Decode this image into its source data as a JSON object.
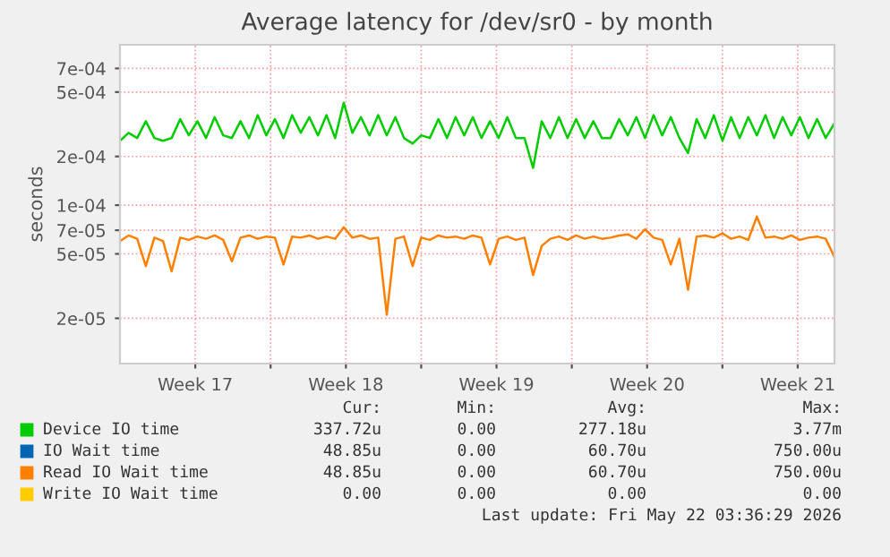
{
  "chart_data": {
    "type": "line",
    "title": "Average latency for /dev/sr0 - by month",
    "ylabel": "seconds",
    "log": true,
    "grid": true,
    "legend": "bottom",
    "marker": "none",
    "line_style": "solid",
    "xlim": [
      "2026-04-20T00:00",
      "2026-05-23T05:00"
    ],
    "xticks": [
      {
        "value": "2026-04-23T12:00",
        "label": "Week 17"
      },
      {
        "value": "2026-04-27",
        "label": null
      },
      {
        "value": "2026-04-30T12:00",
        "label": "Week 18"
      },
      {
        "value": "2026-05-04",
        "label": null
      },
      {
        "value": "2026-05-07T12:00",
        "label": "Week 19"
      },
      {
        "value": "2026-05-11",
        "label": null
      },
      {
        "value": "2026-05-14T12:00",
        "label": "Week 20"
      },
      {
        "value": "2026-05-18",
        "label": null
      },
      {
        "value": "2026-05-21T12:00",
        "label": "Week 21"
      }
    ],
    "ylim": [
      1.05e-05,
      0.00098
    ],
    "yticks": [
      {
        "value": 2e-05,
        "label": "2e-05"
      },
      {
        "value": 5e-05,
        "label": "5e-05"
      },
      {
        "value": 7e-05,
        "label": "7e-05"
      },
      {
        "value": 0.0001,
        "label": "1e-04"
      },
      {
        "value": 0.0002,
        "label": "2e-04"
      },
      {
        "value": 0.0005,
        "label": "5e-04"
      },
      {
        "value": 0.0007,
        "label": "7e-04"
      }
    ],
    "x": [
      "2026-04-20T00:00",
      "2026-04-20T09:36",
      "2026-04-20T19:12",
      "2026-04-21T04:48",
      "2026-04-21T14:24",
      "2026-04-22T00:00",
      "2026-04-22T09:36",
      "2026-04-22T19:12",
      "2026-04-23T04:48",
      "2026-04-23T14:24",
      "2026-04-24T00:00",
      "2026-04-24T09:36",
      "2026-04-24T19:12",
      "2026-04-25T04:48",
      "2026-04-25T14:24",
      "2026-04-26T00:00",
      "2026-04-26T09:36",
      "2026-04-26T19:12",
      "2026-04-27T04:48",
      "2026-04-27T14:24",
      "2026-04-28T00:00",
      "2026-04-28T09:36",
      "2026-04-28T19:12",
      "2026-04-29T04:48",
      "2026-04-29T14:24",
      "2026-04-30T00:00",
      "2026-04-30T09:36",
      "2026-04-30T19:12",
      "2026-05-01T04:48",
      "2026-05-01T14:24",
      "2026-05-02T00:00",
      "2026-05-02T09:36",
      "2026-05-02T19:12",
      "2026-05-03T04:48",
      "2026-05-03T14:24",
      "2026-05-04T00:00",
      "2026-05-04T09:36",
      "2026-05-04T19:12",
      "2026-05-05T04:48",
      "2026-05-05T14:24",
      "2026-05-06T00:00",
      "2026-05-06T09:36",
      "2026-05-06T19:12",
      "2026-05-07T04:48",
      "2026-05-07T14:24",
      "2026-05-08T00:00",
      "2026-05-08T09:36",
      "2026-05-08T19:12",
      "2026-05-09T04:48",
      "2026-05-09T14:24",
      "2026-05-10T00:00",
      "2026-05-10T09:36",
      "2026-05-10T19:12",
      "2026-05-11T04:48",
      "2026-05-11T14:24",
      "2026-05-12T00:00",
      "2026-05-12T09:36",
      "2026-05-12T19:12",
      "2026-05-13T04:48",
      "2026-05-13T14:24",
      "2026-05-14T00:00",
      "2026-05-14T09:36",
      "2026-05-14T19:12",
      "2026-05-15T04:48",
      "2026-05-15T14:24",
      "2026-05-16T00:00",
      "2026-05-16T09:36",
      "2026-05-16T19:12",
      "2026-05-17T04:48",
      "2026-05-17T14:24",
      "2026-05-18T00:00",
      "2026-05-18T09:36",
      "2026-05-18T19:12",
      "2026-05-19T04:48",
      "2026-05-19T14:24",
      "2026-05-20T00:00",
      "2026-05-20T09:36",
      "2026-05-20T19:12",
      "2026-05-21T04:48",
      "2026-05-21T14:24",
      "2026-05-22T00:00",
      "2026-05-22T09:36",
      "2026-05-22T19:12",
      "2026-05-23T04:48"
    ],
    "series": [
      {
        "name": "Device IO time",
        "color": "#00cc00",
        "values": [
          0.00025,
          0.00028,
          0.00026,
          0.00033,
          0.00026,
          0.00025,
          0.00026,
          0.00034,
          0.00027,
          0.00033,
          0.00026,
          0.00035,
          0.00027,
          0.00026,
          0.00033,
          0.00026,
          0.00036,
          0.00027,
          0.00034,
          0.00026,
          0.00036,
          0.00028,
          0.00035,
          0.00027,
          0.00036,
          0.00026,
          0.00043,
          0.00028,
          0.00035,
          0.00027,
          0.00036,
          0.00027,
          0.00035,
          0.00026,
          0.00024,
          0.00027,
          0.00026,
          0.00034,
          0.00026,
          0.00035,
          0.00027,
          0.00035,
          0.00026,
          0.00033,
          0.00026,
          0.00035,
          0.00026,
          0.00026,
          0.00017,
          0.00033,
          0.00026,
          0.00035,
          0.00026,
          0.00034,
          0.00026,
          0.00033,
          0.00026,
          0.00026,
          0.00034,
          0.00027,
          0.00035,
          0.00026,
          0.00036,
          0.00027,
          0.00035,
          0.00026,
          0.00021,
          0.00034,
          0.00026,
          0.00036,
          0.00025,
          0.00035,
          0.00026,
          0.00035,
          0.00027,
          0.00036,
          0.00026,
          0.00035,
          0.00027,
          0.00035,
          0.00026,
          0.00034,
          0.00026,
          0.00032
        ]
      },
      {
        "name": "IO Wait time",
        "color": "#0066b3",
        "values": [
          null,
          null,
          null,
          null,
          null,
          null,
          null,
          null,
          null,
          null,
          null,
          null,
          null,
          null,
          null,
          null,
          null,
          null,
          null,
          null,
          null,
          null,
          null,
          null,
          null,
          null,
          null,
          null,
          null,
          null,
          null,
          null,
          null,
          null,
          null,
          null,
          null,
          null,
          null,
          null,
          null,
          null,
          null,
          null,
          null,
          null,
          null,
          null,
          null,
          null,
          null,
          null,
          null,
          null,
          null,
          null,
          null,
          null,
          null,
          null,
          null,
          null,
          null,
          null,
          null,
          null,
          null,
          null,
          null,
          null,
          null,
          null,
          null,
          null,
          null,
          null,
          null,
          null,
          null,
          null,
          null,
          null,
          null,
          null
        ]
      },
      {
        "name": "Read IO Wait time",
        "color": "#ff8000",
        "values": [
          6e-05,
          6.5e-05,
          6.2e-05,
          4.2e-05,
          6.3e-05,
          6e-05,
          3.9e-05,
          6.3e-05,
          6.1e-05,
          6.4e-05,
          6.2e-05,
          6.5e-05,
          6.1e-05,
          4.5e-05,
          6.3e-05,
          6.5e-05,
          6.2e-05,
          6.4e-05,
          6.3e-05,
          4.3e-05,
          6.4e-05,
          6.3e-05,
          6.5e-05,
          6.2e-05,
          6.4e-05,
          6.2e-05,
          7.3e-05,
          6.3e-05,
          6.5e-05,
          6.2e-05,
          6.3e-05,
          2.1e-05,
          6.2e-05,
          6.4e-05,
          4.2e-05,
          6.3e-05,
          6.1e-05,
          6.5e-05,
          6.3e-05,
          6.4e-05,
          6.2e-05,
          6.5e-05,
          6.3e-05,
          4.3e-05,
          6.2e-05,
          6.4e-05,
          6.1e-05,
          6.3e-05,
          3.7e-05,
          5.6e-05,
          6.2e-05,
          6.4e-05,
          6.1e-05,
          6.5e-05,
          6.2e-05,
          6.4e-05,
          6.2e-05,
          6.3e-05,
          6.5e-05,
          6.6e-05,
          6.2e-05,
          7.1e-05,
          6.3e-05,
          6.1e-05,
          4.3e-05,
          6.2e-05,
          3e-05,
          6.4e-05,
          6.5e-05,
          6.3e-05,
          6.7e-05,
          6.2e-05,
          6.4e-05,
          6.1e-05,
          8.5e-05,
          6.3e-05,
          6.4e-05,
          6.2e-05,
          6.5e-05,
          6.1e-05,
          6.3e-05,
          6.4e-05,
          6.2e-05,
          4.8e-05
        ]
      },
      {
        "name": "Write IO Wait time",
        "color": "#ffcc00",
        "values": [
          null,
          null,
          null,
          null,
          null,
          null,
          null,
          null,
          null,
          null,
          null,
          null,
          null,
          null,
          null,
          null,
          null,
          null,
          null,
          null,
          null,
          null,
          null,
          null,
          null,
          null,
          null,
          null,
          null,
          null,
          null,
          null,
          null,
          null,
          null,
          null,
          null,
          null,
          null,
          null,
          null,
          null,
          null,
          null,
          null,
          null,
          null,
          null,
          null,
          null,
          null,
          null,
          null,
          null,
          null,
          null,
          null,
          null,
          null,
          null,
          null,
          null,
          null,
          null,
          null,
          null,
          null,
          null,
          null,
          null,
          null,
          null,
          null,
          null,
          null,
          null,
          null,
          null,
          null,
          null,
          null,
          null,
          null,
          null
        ]
      }
    ],
    "annotations": [
      "Cur:",
      "Min:",
      "Avg:",
      "Max:",
      "337.72u",
      "0.00",
      "277.18u",
      "3.77m",
      "48.85u",
      "0.00",
      "60.70u",
      "750.00u",
      "48.85u",
      "0.00",
      "60.70u",
      "750.00u",
      "0.00",
      "0.00",
      "0.00",
      "0.00",
      "Last update: Fri May 22 03:36:29 2026"
    ]
  }
}
